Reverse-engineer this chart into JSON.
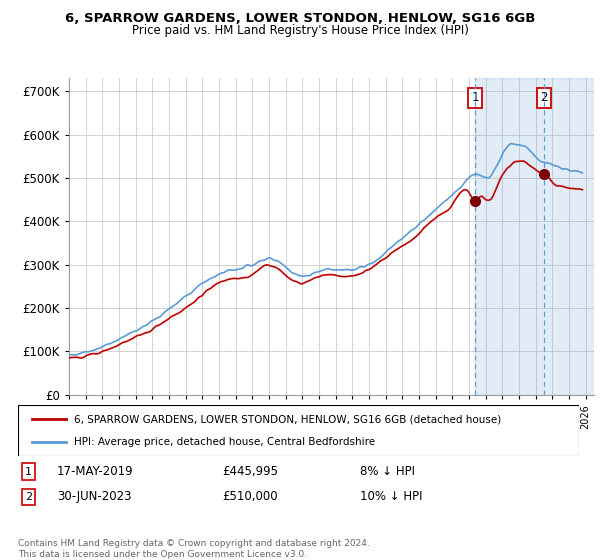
{
  "title": "6, SPARROW GARDENS, LOWER STONDON, HENLOW, SG16 6GB",
  "subtitle": "Price paid vs. HM Land Registry's House Price Index (HPI)",
  "ylabel_ticks": [
    "£0",
    "£100K",
    "£200K",
    "£300K",
    "£400K",
    "£500K",
    "£600K",
    "£700K"
  ],
  "ytick_vals": [
    0,
    100000,
    200000,
    300000,
    400000,
    500000,
    600000,
    700000
  ],
  "ylim": [
    0,
    730000
  ],
  "xlim_start": 1995.0,
  "xlim_end": 2026.5,
  "sale1": {
    "date_x": 2019.37,
    "price": 445995,
    "label": "1",
    "date_str": "17-MAY-2019",
    "pct": "8% ↓ HPI"
  },
  "sale2": {
    "date_x": 2023.49,
    "price": 510000,
    "label": "2",
    "date_str": "30-JUN-2023",
    "pct": "10% ↓ HPI"
  },
  "legend_line1": "6, SPARROW GARDENS, LOWER STONDON, HENLOW, SG16 6GB (detached house)",
  "legend_line2": "HPI: Average price, detached house, Central Bedfordshire",
  "footnote": "Contains HM Land Registry data © Crown copyright and database right 2024.\nThis data is licensed under the Open Government Licence v3.0.",
  "hpi_color": "#5b9bd5",
  "price_color": "#c00000",
  "sale_marker_color": "#7b0000",
  "vline_color": "#5b9bd5",
  "shade_color": "#ddeeff",
  "background_color": "#ffffff",
  "grid_color": "#cccccc",
  "box_color": "#cc0000",
  "num_points": 372,
  "hpi_color_fill": "#cce0f5"
}
